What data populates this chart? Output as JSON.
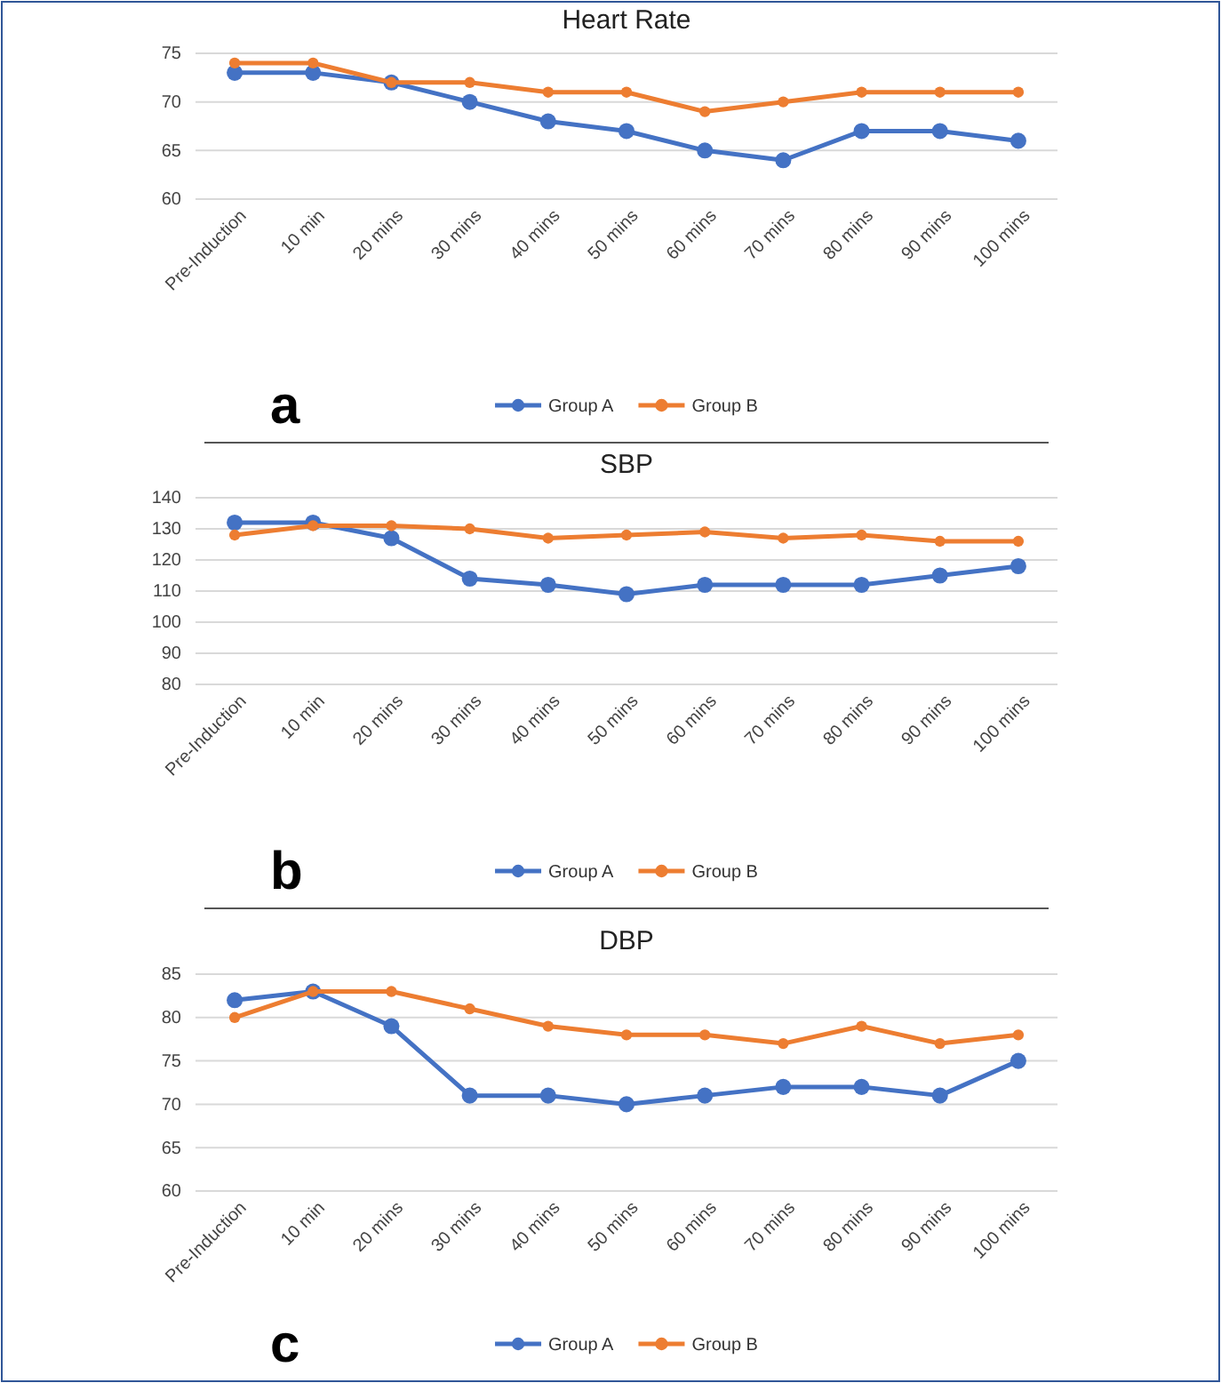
{
  "chart_data": [
    {
      "type": "line",
      "title": "Heart Rate",
      "categories": [
        "Pre-Induction",
        "10 min",
        "20 mins",
        "30 mins",
        "40 mins",
        "50 mins",
        "60 mins",
        "70 mins",
        "80 mins",
        "90 mins",
        "100 mins"
      ],
      "series": [
        {
          "name": "Group A",
          "color": "#4472c4",
          "values": [
            73,
            73,
            72,
            70,
            68,
            67,
            65,
            64,
            67,
            67,
            66
          ]
        },
        {
          "name": "Group B",
          "color": "#ed7d31",
          "values": [
            74,
            74,
            72,
            72,
            71,
            71,
            69,
            70,
            71,
            71,
            71
          ]
        }
      ],
      "ylim": [
        60,
        75
      ],
      "yticks": [
        60,
        65,
        70,
        75
      ],
      "grid": "y",
      "legend": "bottom",
      "marker": "circle",
      "line_style": "solid",
      "annotations": [
        "a"
      ]
    },
    {
      "type": "line",
      "title": "SBP",
      "categories": [
        "Pre-Induction",
        "10 min",
        "20 mins",
        "30 mins",
        "40 mins",
        "50 mins",
        "60 mins",
        "70 mins",
        "80 mins",
        "90 mins",
        "100 mins"
      ],
      "series": [
        {
          "name": "Group A",
          "color": "#4472c4",
          "values": [
            132,
            132,
            127,
            114,
            112,
            109,
            112,
            112,
            112,
            115,
            118
          ]
        },
        {
          "name": "Group B",
          "color": "#ed7d31",
          "values": [
            128,
            131,
            131,
            130,
            127,
            128,
            129,
            127,
            128,
            126,
            126
          ]
        }
      ],
      "ylim": [
        80,
        140
      ],
      "yticks": [
        80,
        90,
        100,
        110,
        120,
        130,
        140
      ],
      "grid": "y",
      "legend": "bottom",
      "marker": "circle",
      "line_style": "solid",
      "annotations": [
        "b"
      ]
    },
    {
      "type": "line",
      "title": "DBP",
      "categories": [
        "Pre-Induction",
        "10 min",
        "20 mins",
        "30 mins",
        "40 mins",
        "50 mins",
        "60 mins",
        "70 mins",
        "80 mins",
        "90 mins",
        "100 mins"
      ],
      "series": [
        {
          "name": "Group A",
          "color": "#4472c4",
          "values": [
            82,
            83,
            79,
            71,
            71,
            70,
            71,
            72,
            72,
            71,
            75
          ]
        },
        {
          "name": "Group B",
          "color": "#ed7d31",
          "values": [
            80,
            83,
            83,
            81,
            79,
            78,
            78,
            77,
            79,
            77,
            78
          ]
        }
      ],
      "ylim": [
        60,
        85
      ],
      "yticks": [
        60,
        65,
        70,
        75,
        80,
        85
      ],
      "grid": "y",
      "legend": "bottom",
      "marker": "circle",
      "line_style": "solid",
      "annotations": [
        "c"
      ]
    }
  ]
}
